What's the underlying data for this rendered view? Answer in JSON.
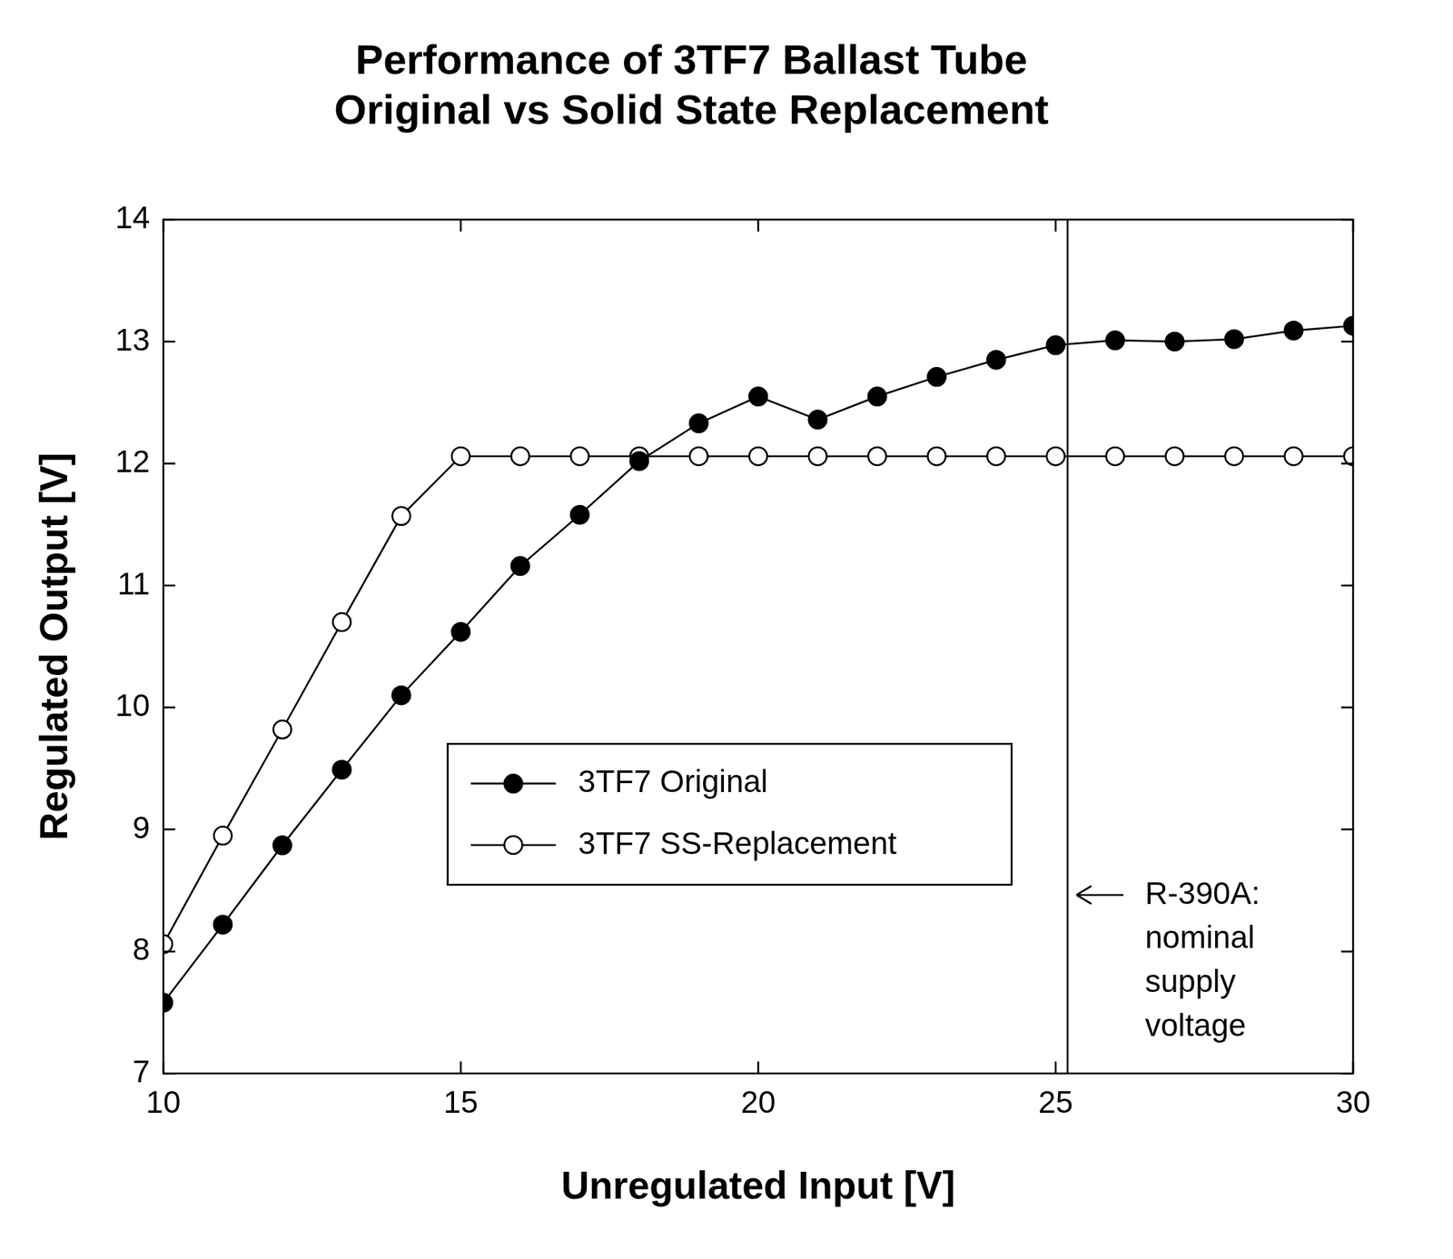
{
  "chart_data": {
    "type": "line",
    "title": [
      "Performance of 3TF7 Ballast Tube",
      "Original vs Solid State Replacement"
    ],
    "x_label": "Unregulated Input [V]",
    "y_label": "Regulated Output [V]",
    "x": [
      10,
      11,
      12,
      13,
      14,
      15,
      16,
      17,
      18,
      19,
      20,
      21,
      22,
      23,
      24,
      25,
      26,
      27,
      28,
      29,
      30
    ],
    "series": [
      {
        "name": "3TF7 Original",
        "color": "#000000",
        "marker": "circle",
        "line_style": "solid",
        "values": [
          7.58,
          8.22,
          8.87,
          9.49,
          10.1,
          10.62,
          11.16,
          11.58,
          12.02,
          12.33,
          12.55,
          12.36,
          12.55,
          12.71,
          12.85,
          12.97,
          13.01,
          13.0,
          13.02,
          13.09,
          13.13
        ]
      },
      {
        "name": "3TF7 SS-Replacement",
        "color": "#ffffff",
        "marker": "circle",
        "line_style": "solid",
        "values": [
          8.06,
          8.95,
          9.82,
          10.7,
          11.57,
          12.06,
          12.06,
          12.06,
          12.06,
          12.06,
          12.06,
          12.06,
          12.06,
          12.06,
          12.06,
          12.06,
          12.06,
          12.06,
          12.06,
          12.06,
          12.06
        ]
      }
    ],
    "xlim": [
      10,
      30
    ],
    "xticks": [
      10,
      15,
      20,
      25,
      30
    ],
    "ylim": [
      7,
      14
    ],
    "yticks": [
      7,
      8,
      9,
      10,
      11,
      12,
      13,
      14
    ],
    "grid": false,
    "legend": "center",
    "reference_lines": [
      {
        "x": 25.2,
        "label": [
          "R-390A:",
          "nominal",
          "supply",
          "voltage"
        ]
      }
    ]
  }
}
